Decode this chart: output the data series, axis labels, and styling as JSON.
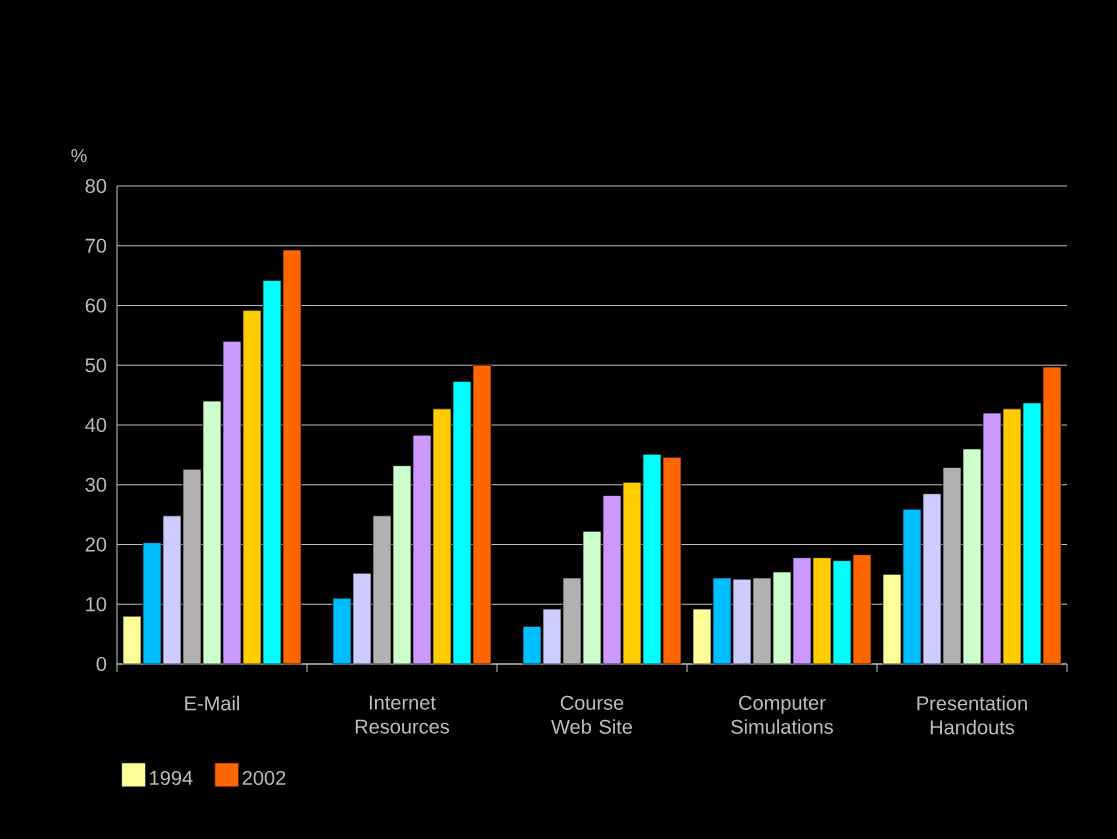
{
  "chart_data": {
    "type": "bar",
    "ylabel": "%",
    "categories": [
      "E-Mail",
      "Internet Resources",
      "Course Web Site",
      "Computer Simulations",
      "Presentation Handouts"
    ],
    "series": [
      {
        "name": "1994",
        "color": "#ffff99",
        "values": [
          8,
          null,
          null,
          9.2,
          15
        ]
      },
      {
        "color": "#00bfff",
        "values": [
          20.3,
          11,
          6.3,
          14.4,
          25.9
        ]
      },
      {
        "color": "#ccccff",
        "values": [
          24.8,
          15.2,
          9.2,
          14.2,
          28.5
        ]
      },
      {
        "color": "#b2b2b2",
        "values": [
          32.6,
          24.8,
          14.4,
          14.4,
          32.9
        ]
      },
      {
        "color": "#ccffcc",
        "values": [
          44,
          33.2,
          22.2,
          15.4,
          36
        ]
      },
      {
        "color": "#cc99ff",
        "values": [
          54,
          38.3,
          28.2,
          17.8,
          42
        ]
      },
      {
        "color": "#ffcc00",
        "values": [
          59.2,
          42.7,
          30.4,
          17.8,
          42.7
        ]
      },
      {
        "color": "#00ffff",
        "values": [
          64.2,
          47.3,
          35.1,
          17.3,
          43.7
        ]
      },
      {
        "name": "2002",
        "color": "#ff6600",
        "values": [
          69.3,
          50,
          34.6,
          18.3,
          49.7
        ]
      }
    ],
    "ylim": [
      0,
      80
    ],
    "yticks": [
      0,
      10,
      20,
      30,
      40,
      50,
      60,
      70,
      80
    ],
    "grid": "y",
    "legend": "bottom left"
  }
}
